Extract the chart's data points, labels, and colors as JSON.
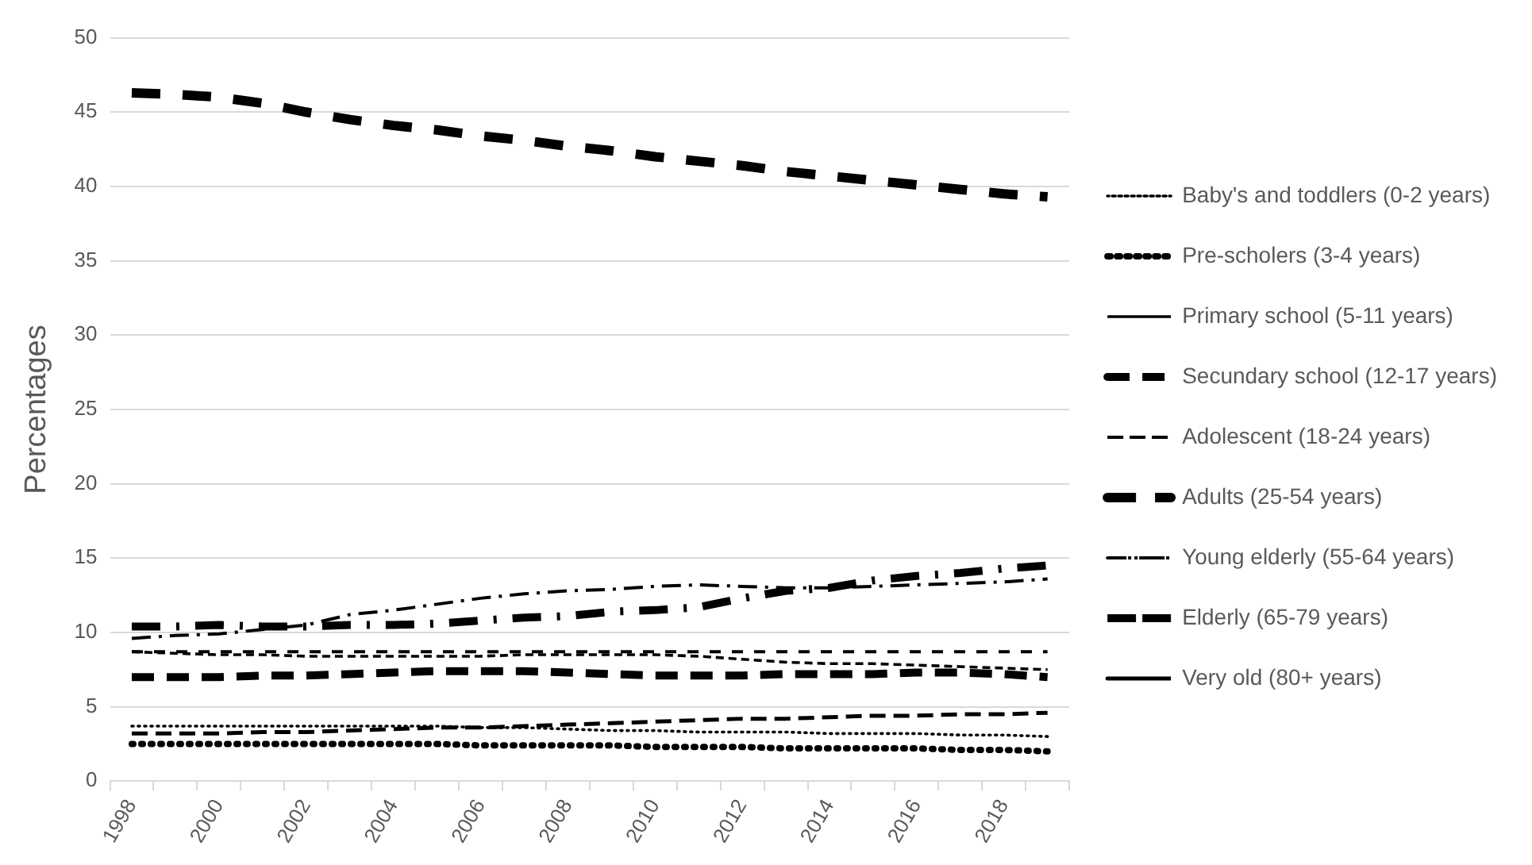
{
  "chart_data": {
    "type": "line",
    "ylabel": "Percentages",
    "categories": [
      "1998",
      null,
      "2000",
      null,
      "2002",
      null,
      "2004",
      null,
      "2006",
      null,
      "2008",
      null,
      "2010",
      null,
      "2012",
      null,
      "2014",
      null,
      "2016",
      null,
      "2018",
      null
    ],
    "ylim": [
      0,
      50
    ],
    "yticks": [
      0,
      5,
      10,
      15,
      20,
      25,
      30,
      35,
      40,
      45,
      50
    ],
    "grid": "y",
    "legend": "right",
    "marker": "none",
    "series": [
      {
        "name": "Baby's and toddlers (0-2 years)",
        "color": "#000000",
        "line_style": "dotted",
        "values": [
          3.7,
          3.7,
          3.7,
          3.7,
          3.7,
          3.7,
          3.7,
          3.7,
          3.6,
          3.6,
          3.5,
          3.4,
          3.4,
          3.3,
          3.3,
          3.3,
          3.2,
          3.2,
          3.2,
          3.1,
          3.1,
          3.0
        ]
      },
      {
        "name": "Pre-scholers (3-4 years)",
        "color": "#000000",
        "line_style": "dotted",
        "values": [
          2.5,
          2.5,
          2.5,
          2.5,
          2.5,
          2.5,
          2.5,
          2.5,
          2.4,
          2.4,
          2.4,
          2.4,
          2.3,
          2.3,
          2.3,
          2.2,
          2.2,
          2.2,
          2.2,
          2.1,
          2.1,
          2.0
        ]
      },
      {
        "name": "Primary school (5-11 years)",
        "color": "#000000",
        "line_style": "dashed",
        "values": [
          8.7,
          8.6,
          8.5,
          8.5,
          8.4,
          8.4,
          8.4,
          8.4,
          8.4,
          8.5,
          8.5,
          8.5,
          8.5,
          8.4,
          8.2,
          8.0,
          7.9,
          7.9,
          7.8,
          7.7,
          7.6,
          7.5
        ]
      },
      {
        "name": "Secundary school (12-17 years)",
        "color": "#000000",
        "line_style": "dashed",
        "values": [
          7.0,
          7.0,
          7.0,
          7.1,
          7.1,
          7.2,
          7.3,
          7.4,
          7.4,
          7.4,
          7.3,
          7.2,
          7.1,
          7.1,
          7.1,
          7.2,
          7.2,
          7.2,
          7.3,
          7.3,
          7.2,
          7.0
        ]
      },
      {
        "name": "Adolescent (18-24 years)",
        "color": "#000000",
        "line_style": "dashed",
        "values": [
          8.7,
          8.7,
          8.7,
          8.7,
          8.7,
          8.7,
          8.7,
          8.7,
          8.7,
          8.7,
          8.7,
          8.7,
          8.7,
          8.7,
          8.7,
          8.7,
          8.7,
          8.7,
          8.7,
          8.7,
          8.7,
          8.7
        ]
      },
      {
        "name": "Adults (25-54 years)",
        "color": "#000000",
        "line_style": "dashed",
        "values": [
          46.3,
          46.2,
          46.0,
          45.6,
          45.0,
          44.5,
          44.1,
          43.8,
          43.4,
          43.1,
          42.7,
          42.4,
          42.0,
          41.7,
          41.4,
          41.0,
          40.7,
          40.4,
          40.1,
          39.8,
          39.5,
          39.3
        ]
      },
      {
        "name": "Young elderly (55-64 years)",
        "color": "#000000",
        "line_style": "dashed",
        "values": [
          9.6,
          9.8,
          9.9,
          10.2,
          10.5,
          11.2,
          11.5,
          11.9,
          12.3,
          12.6,
          12.8,
          12.9,
          13.1,
          13.2,
          13.1,
          13.0,
          13.0,
          13.1,
          13.2,
          13.3,
          13.4,
          13.6
        ]
      },
      {
        "name": "Elderly (65-79 years)",
        "color": "#000000",
        "line_style": "dashed",
        "values": [
          10.4,
          10.4,
          10.5,
          10.4,
          10.4,
          10.5,
          10.5,
          10.6,
          10.8,
          11.0,
          11.1,
          11.4,
          11.5,
          11.7,
          12.3,
          12.8,
          13.0,
          13.5,
          13.8,
          14.0,
          14.3,
          14.5
        ]
      },
      {
        "name": "Very old (80+ years)",
        "color": "#000000",
        "line_style": "dashed",
        "values": [
          3.2,
          3.2,
          3.2,
          3.3,
          3.3,
          3.4,
          3.5,
          3.6,
          3.6,
          3.7,
          3.8,
          3.9,
          4.0,
          4.1,
          4.2,
          4.2,
          4.3,
          4.4,
          4.4,
          4.5,
          4.5,
          4.6
        ]
      }
    ]
  }
}
